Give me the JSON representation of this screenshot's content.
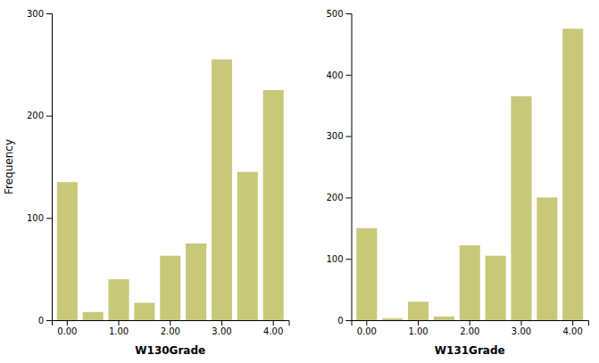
{
  "chart_data": [
    {
      "type": "bar",
      "x_label": "W130Grade",
      "y_label": "Frequency",
      "categories": [
        "0.00",
        null,
        "1.00",
        null,
        "2.00",
        null,
        "3.00",
        null,
        "4.00"
      ],
      "values": [
        135,
        8,
        40,
        17,
        63,
        75,
        255,
        145,
        225
      ],
      "color": "#c8c87a",
      "ylim": [
        0,
        300
      ],
      "yticks": [
        0,
        100,
        200,
        300
      ],
      "grid": false
    },
    {
      "type": "bar",
      "x_label": "W131Grade",
      "categories": [
        "0.00",
        null,
        "1.00",
        null,
        "2.00",
        null,
        "3.00",
        null,
        "4.00"
      ],
      "values": [
        150,
        3,
        30,
        6,
        122,
        105,
        365,
        200,
        475
      ],
      "color": "#c8c87a",
      "ylim": [
        0,
        500
      ],
      "yticks": [
        0,
        100,
        200,
        300,
        400,
        500
      ],
      "grid": false
    }
  ]
}
